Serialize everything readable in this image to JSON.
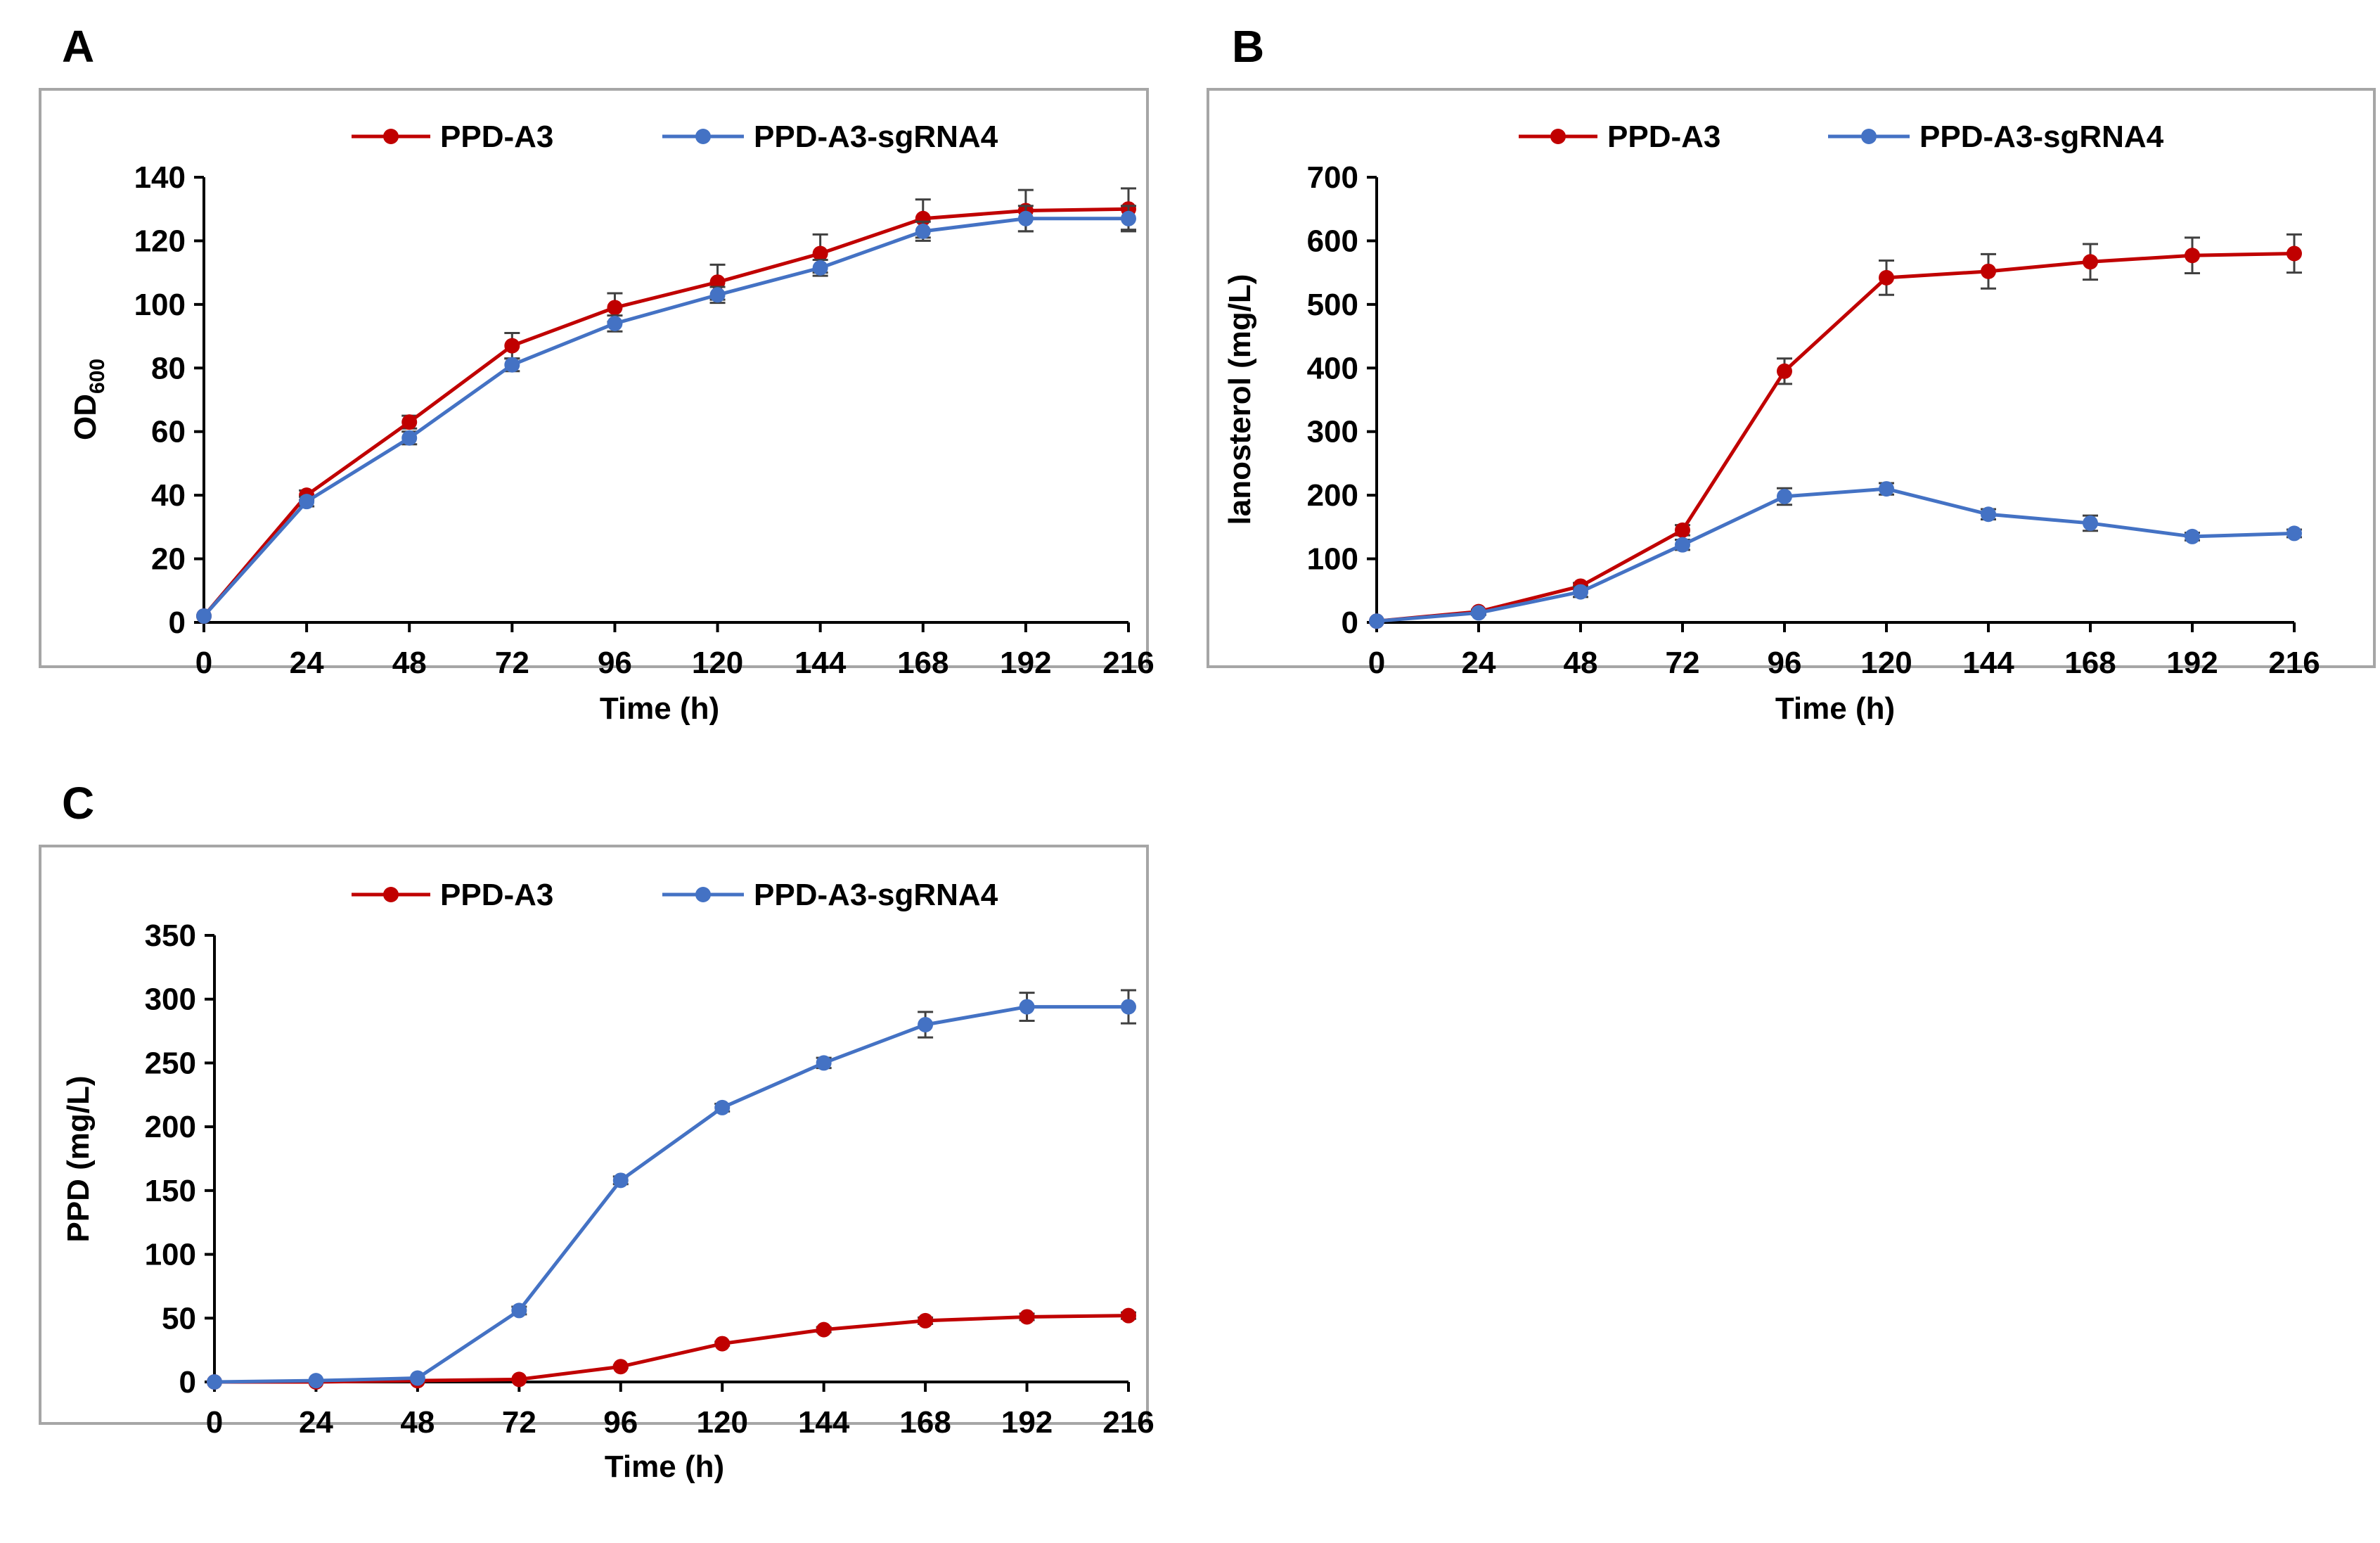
{
  "colors": {
    "red": "#c00000",
    "blue": "#4472c4"
  },
  "chart_data": [
    {
      "id": "A",
      "panel_label": "A",
      "type": "line",
      "xlabel": "Time (h)",
      "ylabel": "OD",
      "ylabel_subscript": "600",
      "x": [
        0,
        24,
        48,
        72,
        96,
        120,
        144,
        168,
        192,
        216
      ],
      "xlim": [
        0,
        216
      ],
      "ylim": [
        0,
        140
      ],
      "yticks": [
        0,
        20,
        40,
        60,
        80,
        100,
        120,
        140
      ],
      "grid": false,
      "legend": "top",
      "series": [
        {
          "name": "PPD-A3",
          "color": "red",
          "values": [
            2,
            40,
            63,
            87,
            99,
            107,
            116,
            127,
            129.5,
            130
          ],
          "errors": [
            0,
            1.5,
            2,
            4,
            4.5,
            5.5,
            6,
            6,
            6.5,
            6.5
          ]
        },
        {
          "name": "PPD-A3-sgRNA4",
          "color": "blue",
          "values": [
            2,
            38,
            58,
            81,
            94,
            103,
            111.5,
            123,
            127,
            127
          ],
          "errors": [
            0,
            1.5,
            2,
            2,
            2.5,
            2.5,
            2.5,
            3,
            4,
            4
          ]
        }
      ]
    },
    {
      "id": "B",
      "panel_label": "B",
      "type": "line",
      "xlabel": "Time (h)",
      "ylabel": "lanosterol (mg/L)",
      "x": [
        0,
        24,
        48,
        72,
        96,
        120,
        144,
        168,
        192,
        216
      ],
      "xlim": [
        0,
        216
      ],
      "ylim": [
        0,
        700
      ],
      "yticks": [
        0,
        100,
        200,
        300,
        400,
        500,
        600,
        700
      ],
      "grid": false,
      "legend": "top",
      "series": [
        {
          "name": "PPD-A3",
          "color": "red",
          "values": [
            2,
            17,
            57,
            145,
            395,
            542,
            552,
            567,
            577,
            580
          ],
          "errors": [
            0,
            3,
            5,
            8,
            20,
            27,
            27,
            28,
            28,
            30
          ]
        },
        {
          "name": "PPD-A3-sgRNA4",
          "color": "blue",
          "values": [
            2,
            15,
            48,
            122,
            198,
            210,
            170,
            156,
            135,
            140
          ],
          "errors": [
            0,
            3,
            8,
            8,
            13,
            9,
            8,
            12,
            6,
            6
          ]
        }
      ]
    },
    {
      "id": "C",
      "panel_label": "C",
      "type": "line",
      "xlabel": "Time (h)",
      "ylabel": "PPD (mg/L)",
      "x": [
        0,
        24,
        48,
        72,
        96,
        120,
        144,
        168,
        192,
        216
      ],
      "xlim": [
        0,
        216
      ],
      "ylim": [
        0,
        350
      ],
      "yticks": [
        0,
        50,
        100,
        150,
        200,
        250,
        300,
        350
      ],
      "grid": false,
      "legend": "top",
      "series": [
        {
          "name": "PPD-A3",
          "color": "red",
          "values": [
            0,
            0,
            1,
            2,
            12,
            30,
            41,
            48,
            51,
            52
          ],
          "errors": [
            0,
            0,
            0,
            0,
            1,
            1.5,
            2,
            2.5,
            2.5,
            2.5
          ]
        },
        {
          "name": "PPD-A3-sgRNA4",
          "color": "blue",
          "values": [
            0,
            1,
            3,
            56,
            158,
            215,
            250,
            280,
            294,
            294
          ],
          "errors": [
            0,
            0,
            0,
            3,
            3,
            3,
            4,
            10,
            11,
            13
          ]
        }
      ]
    }
  ]
}
